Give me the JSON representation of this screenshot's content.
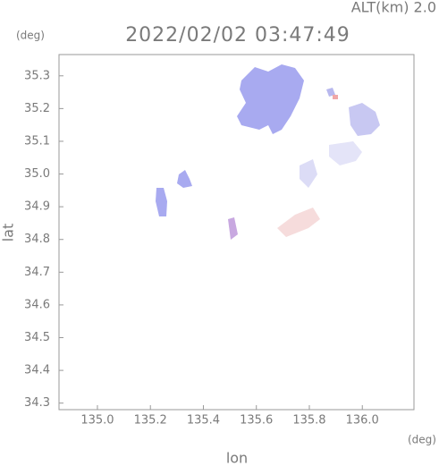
{
  "chart_data": {
    "type": "map",
    "title": "2022/02/02 03:47:49",
    "subtitle": "ALT(km) 2.0",
    "y_unit": "(deg)",
    "x_unit": "(deg)",
    "x_label": "lon",
    "y_label": "lat",
    "xlim": [
      134.855,
      136.195
    ],
    "ylim": [
      34.28,
      35.365
    ],
    "xticks": [
      {
        "value": 135.0,
        "label": "135.0"
      },
      135.2,
      135.4,
      135.6,
      135.8,
      {
        "value": 136.0,
        "label": "136.0"
      }
    ],
    "yticks": [
      34.3,
      34.4,
      34.5,
      34.6,
      34.7,
      34.8,
      34.9,
      {
        "value": 35.0,
        "label": "35.0"
      },
      35.1,
      35.2,
      35.3
    ]
  }
}
